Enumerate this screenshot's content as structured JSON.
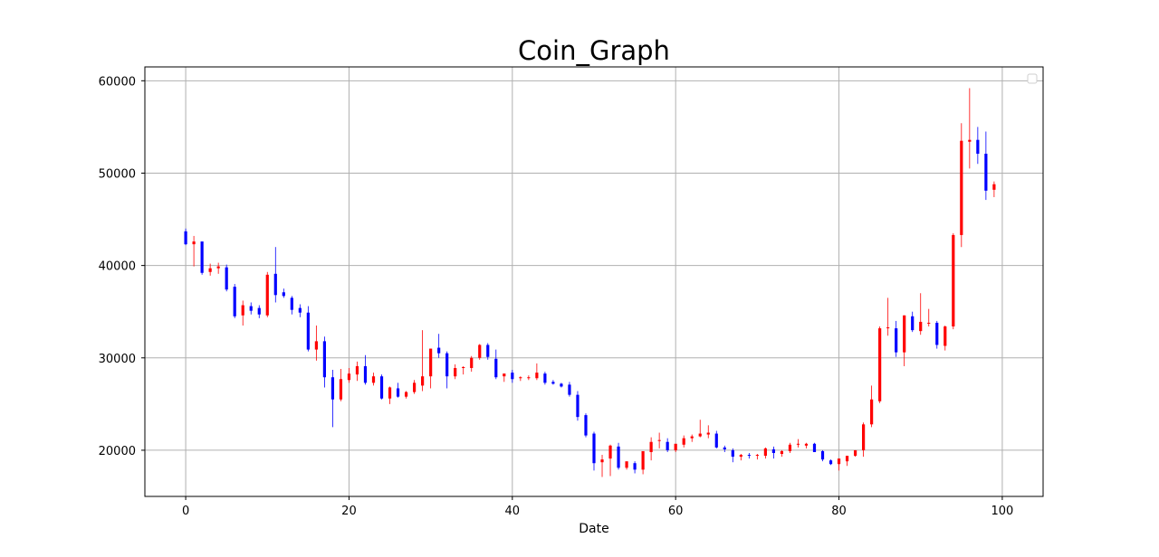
{
  "chart_data": {
    "type": "candlestick",
    "title": "Coin_Graph",
    "xlabel": "Date",
    "ylabel": "",
    "xlim": [
      -5,
      105
    ],
    "ylim": [
      15000,
      61500
    ],
    "x_ticks": [
      0,
      20,
      40,
      60,
      80,
      100
    ],
    "y_ticks": [
      20000,
      30000,
      40000,
      50000,
      60000
    ],
    "grid": true,
    "legend": "top-right (empty)",
    "colors": {
      "up": "#ff0000",
      "down": "#0000ff"
    },
    "ohlc": [
      [
        43700,
        44000,
        42200,
        42300
      ],
      [
        42300,
        43200,
        39900,
        42600
      ],
      [
        42600,
        42600,
        39000,
        39200
      ],
      [
        39300,
        40200,
        38900,
        39700
      ],
      [
        39700,
        40300,
        39100,
        39900
      ],
      [
        39800,
        40100,
        37200,
        37400
      ],
      [
        37700,
        38000,
        34300,
        34500
      ],
      [
        34600,
        36200,
        33500,
        35700
      ],
      [
        35600,
        36000,
        34700,
        35100
      ],
      [
        35400,
        35700,
        34300,
        34700
      ],
      [
        34600,
        39300,
        34400,
        39000
      ],
      [
        39100,
        42000,
        36000,
        36800
      ],
      [
        37100,
        37500,
        36500,
        36700
      ],
      [
        36500,
        36700,
        34700,
        35200
      ],
      [
        35400,
        35800,
        34400,
        34900
      ],
      [
        34900,
        35600,
        30700,
        30900
      ],
      [
        30900,
        33500,
        29700,
        31800
      ],
      [
        31800,
        32300,
        26800,
        27900
      ],
      [
        27900,
        28700,
        22500,
        25500
      ],
      [
        25500,
        28800,
        25300,
        27700
      ],
      [
        27600,
        28900,
        27300,
        28300
      ],
      [
        28200,
        29600,
        27500,
        29100
      ],
      [
        29100,
        30300,
        27100,
        27300
      ],
      [
        27300,
        28400,
        27000,
        28000
      ],
      [
        28000,
        28200,
        25500,
        25600
      ],
      [
        25600,
        26900,
        25000,
        26800
      ],
      [
        26700,
        27300,
        25700,
        25800
      ],
      [
        25800,
        26400,
        25600,
        26300
      ],
      [
        26300,
        27600,
        26100,
        27300
      ],
      [
        27000,
        33000,
        26400,
        28000
      ],
      [
        28000,
        31000,
        26700,
        31000
      ],
      [
        31100,
        32600,
        30000,
        30500
      ],
      [
        30500,
        30700,
        26700,
        28000
      ],
      [
        28000,
        29300,
        27700,
        28900
      ],
      [
        28900,
        29100,
        28200,
        29000
      ],
      [
        28900,
        30200,
        28500,
        30000
      ],
      [
        30000,
        31500,
        29800,
        31400
      ],
      [
        31400,
        31600,
        29800,
        30100
      ],
      [
        29900,
        30900,
        27700,
        27900
      ],
      [
        28000,
        28300,
        27400,
        28300
      ],
      [
        28400,
        28700,
        27300,
        27700
      ],
      [
        27800,
        28000,
        27500,
        27900
      ],
      [
        27800,
        28100,
        27600,
        27900
      ],
      [
        27800,
        29400,
        27600,
        28400
      ],
      [
        28300,
        28500,
        27100,
        27300
      ],
      [
        27400,
        27600,
        27100,
        27200
      ],
      [
        27200,
        27300,
        26800,
        26900
      ],
      [
        27100,
        27400,
        25800,
        26000
      ],
      [
        26000,
        26400,
        23200,
        23600
      ],
      [
        23800,
        24000,
        21400,
        21600
      ],
      [
        21800,
        22000,
        17800,
        18600
      ],
      [
        18700,
        19500,
        17100,
        19000
      ],
      [
        19100,
        20600,
        17200,
        20500
      ],
      [
        20400,
        20800,
        17900,
        18100
      ],
      [
        18100,
        18700,
        17900,
        18800
      ],
      [
        18600,
        18800,
        17500,
        17900
      ],
      [
        17900,
        19800,
        17400,
        19900
      ],
      [
        19800,
        21400,
        18900,
        20900
      ],
      [
        21000,
        21900,
        20200,
        21100
      ],
      [
        20900,
        21300,
        19800,
        20000
      ],
      [
        20000,
        20600,
        19800,
        20700
      ],
      [
        20600,
        21600,
        20300,
        21300
      ],
      [
        21300,
        21700,
        20900,
        21500
      ],
      [
        21500,
        23300,
        21400,
        21800
      ],
      [
        21700,
        22700,
        21300,
        21900
      ],
      [
        21800,
        22100,
        20200,
        20300
      ],
      [
        20300,
        20500,
        19800,
        20100
      ],
      [
        20000,
        20200,
        18700,
        19300
      ],
      [
        19300,
        19600,
        18900,
        19500
      ],
      [
        19500,
        19700,
        19100,
        19400
      ],
      [
        19400,
        19600,
        19000,
        19500
      ],
      [
        19400,
        20300,
        19100,
        20200
      ],
      [
        20100,
        20400,
        19100,
        19700
      ],
      [
        19600,
        20000,
        19300,
        19900
      ],
      [
        19900,
        20800,
        19700,
        20600
      ],
      [
        20600,
        21200,
        20300,
        20700
      ],
      [
        20500,
        20800,
        20200,
        20700
      ],
      [
        20700,
        20800,
        19800,
        19800
      ],
      [
        19900,
        20000,
        18800,
        19000
      ],
      [
        18900,
        19000,
        18400,
        18500
      ],
      [
        18500,
        19000,
        17800,
        19100
      ],
      [
        18800,
        19400,
        18300,
        19400
      ],
      [
        19400,
        20000,
        19300,
        20000
      ],
      [
        20000,
        23000,
        19300,
        22800
      ],
      [
        22800,
        27000,
        22500,
        25500
      ],
      [
        25300,
        33400,
        25100,
        33200
      ],
      [
        33200,
        36500,
        32400,
        33300
      ],
      [
        33200,
        34000,
        30100,
        30600
      ],
      [
        30600,
        34600,
        29100,
        34600
      ],
      [
        34500,
        35000,
        32800,
        33000
      ],
      [
        32900,
        37000,
        32500,
        33900
      ],
      [
        33700,
        35300,
        33400,
        33800
      ],
      [
        33800,
        34000,
        31000,
        31400
      ],
      [
        31300,
        33500,
        30800,
        33400
      ],
      [
        33400,
        43500,
        33100,
        43300
      ],
      [
        43300,
        55400,
        42000,
        53500
      ],
      [
        53400,
        59200,
        50500,
        53600
      ],
      [
        53600,
        55000,
        51000,
        52100
      ],
      [
        52100,
        54500,
        47100,
        48100
      ],
      [
        48200,
        49100,
        47400,
        48800
      ]
    ]
  }
}
